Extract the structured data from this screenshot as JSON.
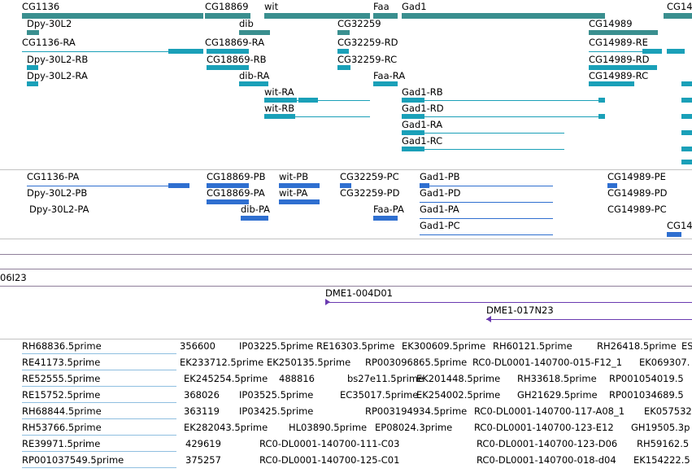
{
  "colors": {
    "gene": "#3a8f8f",
    "transcript": "#1aa0b8",
    "protein": "#2f6fd0",
    "clone": "#6a3ab0",
    "est": "#8fbfe0",
    "separator": "#c3c3c3"
  },
  "genes": [
    {
      "label": "CG1136"
    },
    {
      "label": "CG18869"
    },
    {
      "label": "wit"
    },
    {
      "label": "Faa"
    },
    {
      "label": "Gad1"
    },
    {
      "label": "CG14"
    },
    {
      "label": "Dpy-30L2"
    },
    {
      "label": "dib"
    },
    {
      "label": "CG32259"
    },
    {
      "label": "CG14989"
    }
  ],
  "transcripts": [
    {
      "label": "CG1136-RA"
    },
    {
      "label": "CG18869-RA"
    },
    {
      "label": "CG32259-RD"
    },
    {
      "label": "CG14989-RE"
    },
    {
      "label": "Dpy-30L2-RB"
    },
    {
      "label": "CG18869-RB"
    },
    {
      "label": "CG32259-RC"
    },
    {
      "label": "CG14989-RD"
    },
    {
      "label": "Dpy-30L2-RA"
    },
    {
      "label": "dib-RA"
    },
    {
      "label": "Faa-RA"
    },
    {
      "label": "CG14989-RC"
    },
    {
      "label": "wit-RA"
    },
    {
      "label": "Gad1-RB"
    },
    {
      "label": "wit-RB"
    },
    {
      "label": "Gad1-RD"
    },
    {
      "label": "Gad1-RA"
    },
    {
      "label": "Gad1-RC"
    }
  ],
  "proteins": [
    {
      "label": "CG1136-PA"
    },
    {
      "label": "CG18869-PB"
    },
    {
      "label": "wit-PB"
    },
    {
      "label": "CG32259-PC"
    },
    {
      "label": "Gad1-PB"
    },
    {
      "label": "CG14989-PE"
    },
    {
      "label": "Dpy-30L2-PB"
    },
    {
      "label": "CG18869-PA"
    },
    {
      "label": "wit-PA"
    },
    {
      "label": "CG32259-PD"
    },
    {
      "label": "Gad1-PD"
    },
    {
      "label": "CG14989-PD"
    },
    {
      "label": "Dpy-30L2-PA"
    },
    {
      "label": "dib-PA"
    },
    {
      "label": "Faa-PA"
    },
    {
      "label": "Gad1-PA"
    },
    {
      "label": "CG14989-PC"
    },
    {
      "label": "Gad1-PC"
    },
    {
      "label": "CG14"
    }
  ],
  "clones": {
    "left_label": "06I23",
    "items": [
      {
        "label": "DME1-004D01"
      },
      {
        "label": "DME1-017N23"
      }
    ]
  },
  "ests": [
    "RH68836.5prime",
    "356600",
    "IP03225.5prime",
    "RE16303.5prime",
    "EK300609.5prime",
    "RH60121.5prime",
    "RH26418.5prime",
    "ES",
    "RE41173.5prime",
    "EK233712.5prime",
    "EK250135.5prime",
    "RP003096865.5prime",
    "RC0-DL0001-140700-015-F12_1",
    "EK069307.",
    "RE52555.5prime",
    "EK245254.5prime",
    "488816",
    "bs27e11.5prime",
    "EK201448.5prime",
    "RH33618.5prime",
    "RP001054019.5",
    "RE15752.5prime",
    "368026",
    "IP03525.5prime",
    "EC35017.5prime",
    "EK254002.5prime",
    "GH21629.5prime",
    "RP001034689.5",
    "RH68844.5prime",
    "363119",
    "IP03425.5prime",
    "RP003194934.5prime",
    "RC0-DL0001-140700-117-A08_1",
    "EK057532",
    "RH53766.5prime",
    "EK282043.5prime",
    "HL03890.5prime",
    "EP08024.3prime",
    "RC0-DL0001-140700-123-E12",
    "GH19505.3p",
    "RE39971.5prime",
    "429619",
    "RC0-DL0001-140700-111-C03",
    "RC0-DL0001-140700-123-D06",
    "RH59162.5",
    "RP001037549.5prime",
    "375257",
    "RC0-DL0001-140700-125-C01",
    "RC0-DL0001-140700-018-d04",
    "EK154222.5"
  ]
}
